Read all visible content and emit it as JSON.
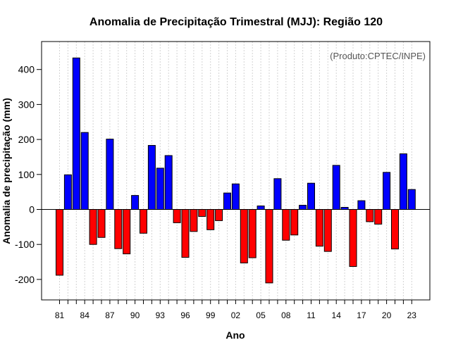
{
  "chart_data": {
    "type": "bar",
    "title": "Anomalia de Precipitação Trimestral (MJJ): Região 120",
    "xlabel": "Ano",
    "ylabel": "Anomalia de precipitação (mm)",
    "annotation": "(Produto:CPTEC/INPE)",
    "ylim": [
      -260,
      480
    ],
    "yticks": [
      -200,
      -100,
      0,
      100,
      200,
      300,
      400
    ],
    "xtick_labels": [
      "81",
      "84",
      "87",
      "90",
      "93",
      "96",
      "99",
      "02",
      "05",
      "08",
      "11",
      "14",
      "17",
      "20",
      "23"
    ],
    "years": [
      1981,
      1982,
      1983,
      1984,
      1985,
      1986,
      1987,
      1988,
      1989,
      1990,
      1991,
      1992,
      1993,
      1994,
      1995,
      1996,
      1997,
      1998,
      1999,
      2000,
      2001,
      2002,
      2003,
      2004,
      2005,
      2006,
      2007,
      2008,
      2009,
      2010,
      2011,
      2012,
      2013,
      2014,
      2015,
      2016,
      2017,
      2018,
      2019,
      2020,
      2021,
      2022,
      2023
    ],
    "values": [
      -188,
      99,
      433,
      220,
      -100,
      -80,
      201,
      -112,
      -127,
      40,
      -68,
      183,
      118,
      154,
      -38,
      -137,
      -63,
      -20,
      -58,
      -32,
      47,
      73,
      -153,
      -138,
      10,
      -210,
      88,
      -88,
      -73,
      12,
      75,
      -105,
      -120,
      126,
      6,
      -163,
      25,
      -35,
      -42,
      106,
      -113,
      159,
      57
    ],
    "colors": {
      "positive": "#0000ff",
      "negative": "#ff0000",
      "grid": "#d3d3d3"
    }
  }
}
